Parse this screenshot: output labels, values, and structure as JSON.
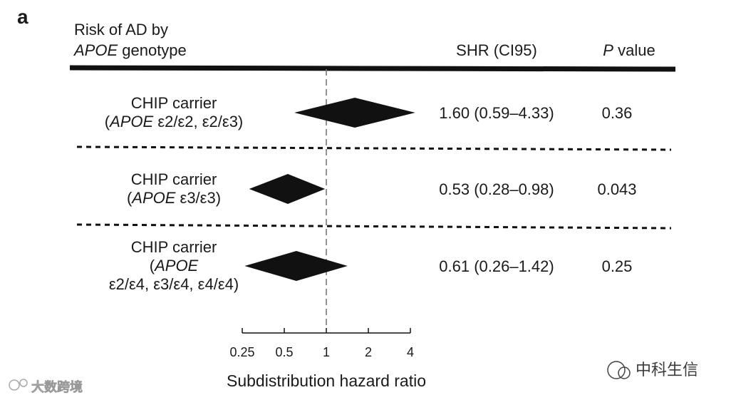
{
  "panel_label": "a",
  "header": {
    "col1_line1": "Risk of AD by",
    "col1_gene": "APOE",
    "col1_rest": " genotype",
    "col2": "SHR (CI95)",
    "col3_italic": "P",
    "col3_rest": " value"
  },
  "watermarks": {
    "right": "中科生信",
    "left": "大数跨境"
  },
  "chart_data": {
    "type": "forest",
    "xlabel": "Subdistribution hazard ratio",
    "x_scale": "log2",
    "xlim": [
      0.25,
      4
    ],
    "ticks": [
      0.25,
      0.5,
      1,
      2,
      4
    ],
    "tick_labels": [
      "0.25",
      "0.5",
      "1",
      "2",
      "4"
    ],
    "reference_line": 1,
    "rows": [
      {
        "label_lines": [
          [
            {
              "t": "CHIP carrier",
              "i": false
            }
          ],
          [
            {
              "t": "(",
              "i": false
            },
            {
              "t": "APOE",
              "i": true
            },
            {
              "t": " ε2/ε2, ε2/ε3)",
              "i": false
            }
          ]
        ],
        "shr": 1.6,
        "lo": 0.59,
        "hi": 4.33,
        "shr_text": "1.60 (0.59–4.33)",
        "p_text": "0.36"
      },
      {
        "label_lines": [
          [
            {
              "t": "CHIP carrier",
              "i": false
            }
          ],
          [
            {
              "t": "(",
              "i": false
            },
            {
              "t": "APOE",
              "i": true
            },
            {
              "t": " ε3/ε3)",
              "i": false
            }
          ]
        ],
        "shr": 0.53,
        "lo": 0.28,
        "hi": 0.98,
        "shr_text": "0.53 (0.28–0.98)",
        "p_text": "0.043"
      },
      {
        "label_lines": [
          [
            {
              "t": "CHIP carrier",
              "i": false
            }
          ],
          [
            {
              "t": "(",
              "i": false
            },
            {
              "t": "APOE",
              "i": true
            }
          ],
          [
            {
              "t": "ε2/ε4, ε3/ε4, ε4/ε4)",
              "i": false
            }
          ]
        ],
        "shr": 0.61,
        "lo": 0.26,
        "hi": 1.42,
        "shr_text": "0.61 (0.26–1.42)",
        "p_text": "0.25"
      }
    ]
  }
}
